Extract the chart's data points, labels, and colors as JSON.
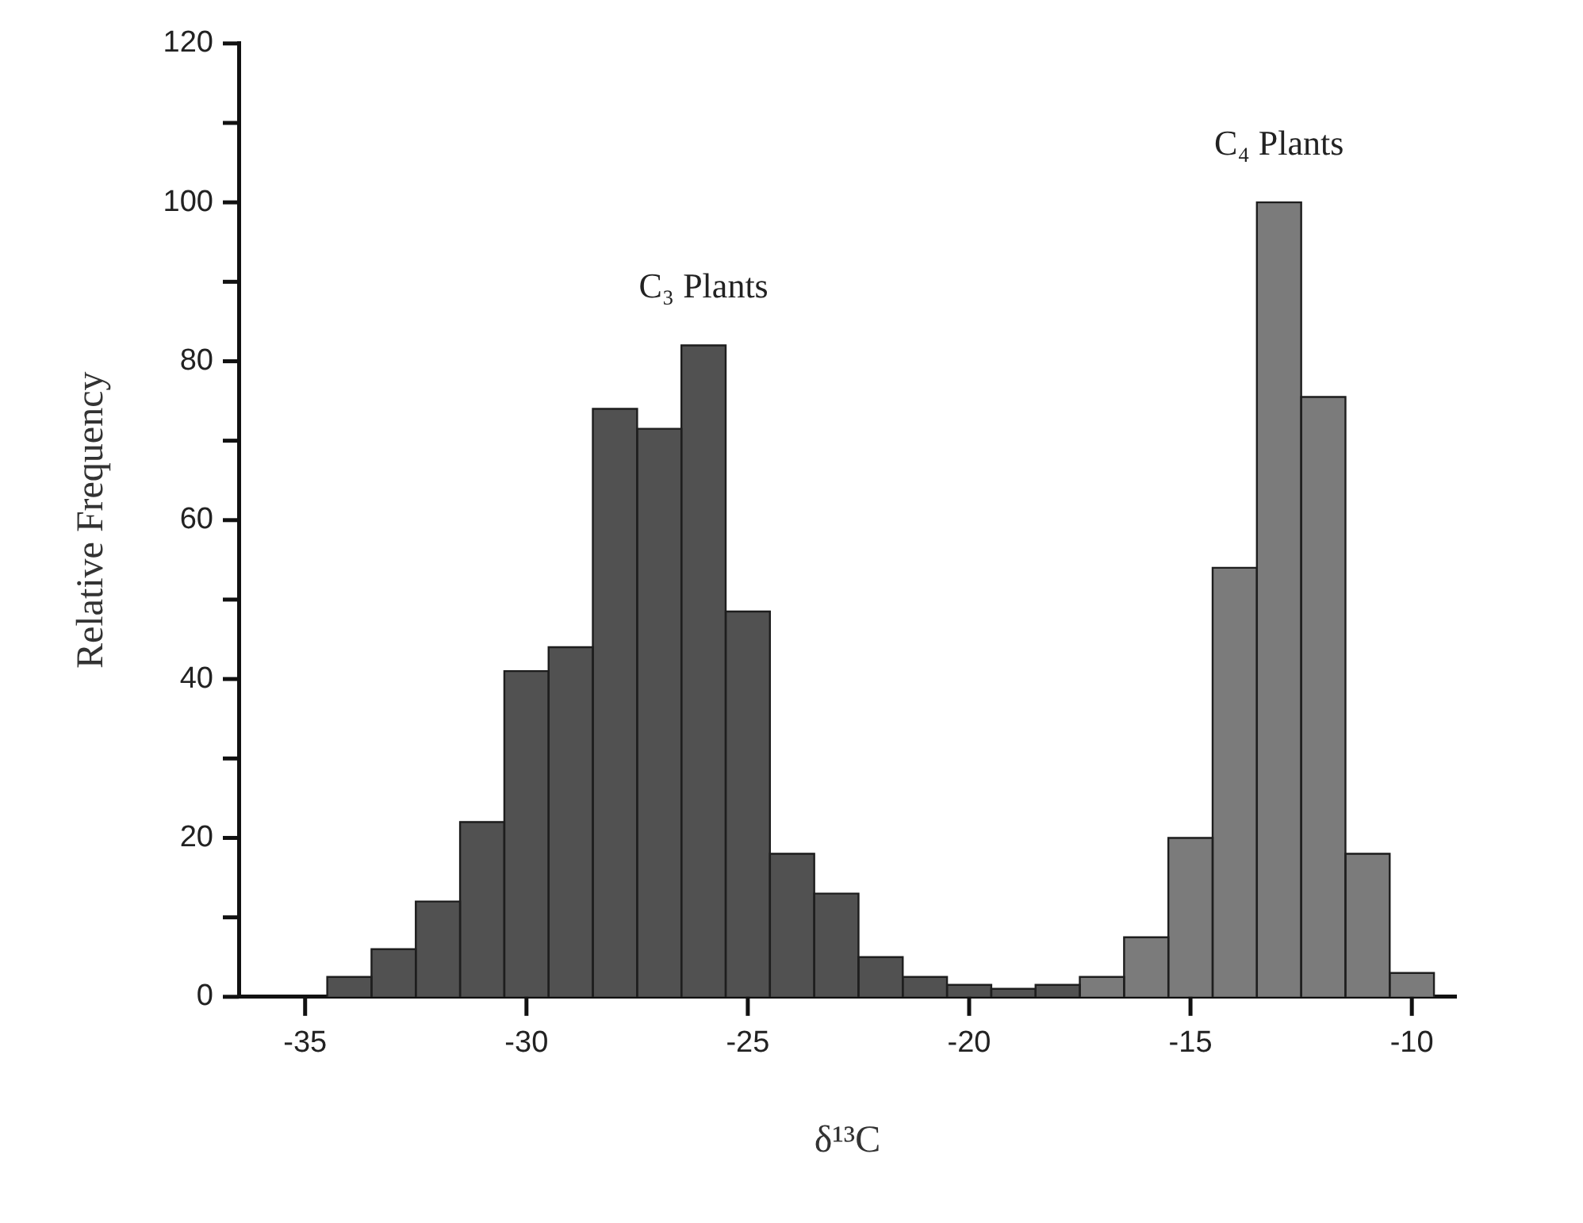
{
  "chart_data": {
    "type": "histogram",
    "xlabel": "δ¹³C",
    "ylabel": "Relative Frequency",
    "bins": [
      -34.5,
      -33.5,
      -32.5,
      -31.5,
      -30.5,
      -29.5,
      -28.5,
      -27.5,
      -26.5,
      -25.5,
      -24.5,
      -23.5,
      -22.5,
      -21.5,
      -20.5,
      -19.5,
      -18.5,
      -17.5,
      -16.5,
      -15.5,
      -14.5,
      -13.5,
      -12.5,
      -11.5,
      -10.5,
      -9.5
    ],
    "values": [
      2.5,
      6,
      12,
      22,
      41,
      44,
      74,
      71.5,
      82,
      48.5,
      18,
      13,
      5,
      2.5,
      1.5,
      1,
      1.5,
      2.5,
      7.5,
      20,
      54,
      100,
      75.5,
      18,
      3
    ],
    "colors": [
      "#515151",
      "#515151",
      "#515151",
      "#515151",
      "#515151",
      "#515151",
      "#515151",
      "#515151",
      "#515151",
      "#515151",
      "#515151",
      "#515151",
      "#515151",
      "#515151",
      "#515151",
      "#515151",
      "#515151",
      "#7b7b7b",
      "#7b7b7b",
      "#7b7b7b",
      "#7b7b7b",
      "#7b7b7b",
      "#7b7b7b",
      "#7b7b7b",
      "#7b7b7b"
    ],
    "xlim": [
      -36.5,
      -9
    ],
    "xticks": [
      -35,
      -30,
      -25,
      -20,
      -15,
      -10
    ],
    "ylim": [
      0,
      120
    ],
    "yticks": [
      0,
      {
        "value": 10,
        "label": null
      },
      20,
      {
        "value": 30,
        "label": null
      },
      40,
      {
        "value": 50,
        "label": null
      },
      60,
      {
        "value": 70,
        "label": null
      },
      80,
      {
        "value": 90,
        "label": null
      },
      100,
      {
        "value": 110,
        "label": null
      },
      120
    ],
    "annotations": [
      {
        "text": "C₃ Plants",
        "x": -26,
        "y": 82
      },
      {
        "text": "C₄ Plants",
        "x": -13,
        "y": 100
      }
    ]
  }
}
